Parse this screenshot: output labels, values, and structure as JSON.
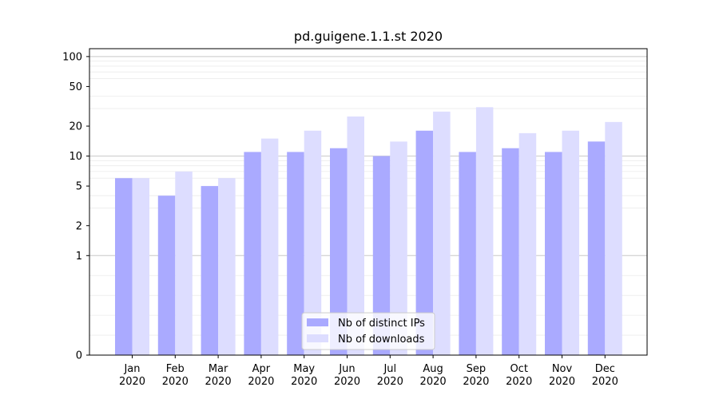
{
  "chart_data": {
    "type": "bar",
    "title": "pd.guigene.1.1.st 2020",
    "xlabel": "",
    "ylabel": "",
    "yscale": "symlog",
    "ylim": [
      0,
      120
    ],
    "yticks": [
      0,
      1,
      2,
      5,
      10,
      20,
      50,
      100
    ],
    "grid": true,
    "legend_position": "bottom-center",
    "categories": [
      [
        "Jan",
        "2020"
      ],
      [
        "Feb",
        "2020"
      ],
      [
        "Mar",
        "2020"
      ],
      [
        "Apr",
        "2020"
      ],
      [
        "May",
        "2020"
      ],
      [
        "Jun",
        "2020"
      ],
      [
        "Jul",
        "2020"
      ],
      [
        "Aug",
        "2020"
      ],
      [
        "Sep",
        "2020"
      ],
      [
        "Oct",
        "2020"
      ],
      [
        "Nov",
        "2020"
      ],
      [
        "Dec",
        "2020"
      ]
    ],
    "series": [
      {
        "name": "Nb of distinct IPs",
        "color": "#aaaaff",
        "values": [
          6,
          4,
          5,
          11,
          11,
          12,
          10,
          18,
          11,
          12,
          11,
          14
        ]
      },
      {
        "name": "Nb of downloads",
        "color": "#ddddff",
        "values": [
          6,
          7,
          6,
          15,
          18,
          25,
          14,
          28,
          31,
          17,
          18,
          22
        ]
      }
    ]
  }
}
